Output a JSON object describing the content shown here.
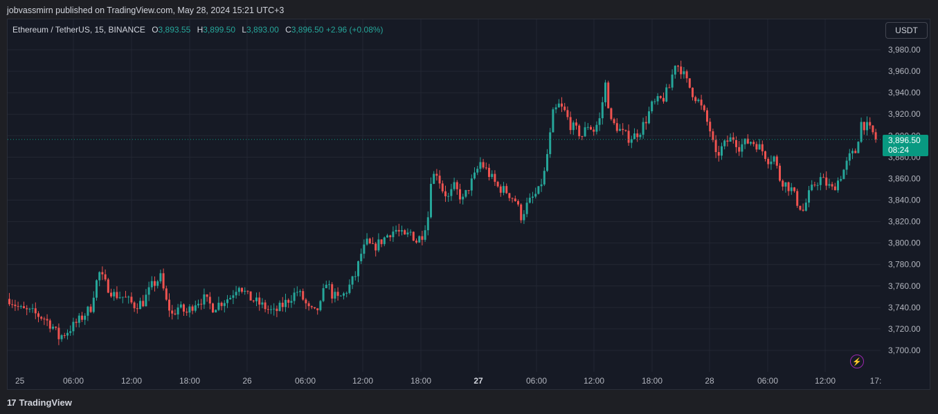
{
  "header": {
    "published_line": "jobvassmirn published on TradingView.com, May 28, 2024 15:21 UTC+3"
  },
  "legend": {
    "symbol": "Ethereum / TetherUS, 15, BINANCE",
    "o_label": "O",
    "o_value": "3,893.55",
    "h_label": "H",
    "h_value": "3,899.50",
    "l_label": "L",
    "l_value": "3,893.00",
    "c_label": "C",
    "c_value": "3,896.50",
    "change": "+2.96 (+0.08%)"
  },
  "currency_button": "USDT",
  "price_label": {
    "price": "3,896.50",
    "countdown": "08:24"
  },
  "footer": {
    "logo_mark": "17",
    "brand": "TradingView"
  },
  "colors": {
    "background": "#161a25",
    "up": "#26a69a",
    "down": "#ef5350",
    "grid": "#232733",
    "axis_text": "#b2b5be",
    "last_price": "#089981"
  },
  "icons": {
    "lightning": "lightning-icon"
  },
  "chart_data": {
    "type": "candlestick",
    "title": "Ethereum / TetherUS, 15, BINANCE",
    "interval": "15",
    "ylim": [
      3690,
      3990
    ],
    "y_ticks": [
      3700,
      3720,
      3740,
      3760,
      3780,
      3800,
      3820,
      3840,
      3860,
      3880,
      3900,
      3920,
      3940,
      3960,
      3980
    ],
    "y_tick_labels": [
      "3,700.00",
      "3,720.00",
      "3,740.00",
      "3,760.00",
      "3,780.00",
      "3,800.00",
      "3,820.00",
      "3,840.00",
      "3,860.00",
      "3,880.00",
      "3,900.00",
      "3,920.00",
      "3,940.00",
      "3,960.00",
      "3,980.00"
    ],
    "x_tick_labels": [
      "25",
      "06:00",
      "12:00",
      "18:00",
      "26",
      "06:00",
      "12:00",
      "18:00",
      "27",
      "06:00",
      "12:00",
      "18:00",
      "28",
      "06:00",
      "12:00",
      "17:"
    ],
    "x_tick_bold": [
      false,
      false,
      false,
      false,
      false,
      false,
      false,
      false,
      true,
      false,
      false,
      false,
      false,
      false,
      false,
      false
    ],
    "last_price": 3896.5,
    "grid": true,
    "price_path": [
      [
        0,
        3748
      ],
      [
        4,
        3738
      ],
      [
        8,
        3735
      ],
      [
        12,
        3730
      ],
      [
        15,
        3722
      ],
      [
        17,
        3712
      ],
      [
        20,
        3718
      ],
      [
        24,
        3728
      ],
      [
        28,
        3740
      ],
      [
        29.5,
        3760
      ],
      [
        31,
        3772
      ],
      [
        33,
        3762
      ],
      [
        36,
        3752
      ],
      [
        39,
        3750
      ],
      [
        43,
        3742
      ],
      [
        46,
        3745
      ],
      [
        49,
        3760
      ],
      [
        52,
        3768
      ],
      [
        54,
        3745
      ],
      [
        56,
        3733
      ],
      [
        58,
        3740
      ],
      [
        61,
        3735
      ],
      [
        64,
        3745
      ],
      [
        67,
        3748
      ],
      [
        70,
        3740
      ],
      [
        73,
        3745
      ],
      [
        76,
        3750
      ],
      [
        79,
        3762
      ],
      [
        82,
        3750
      ],
      [
        85,
        3745
      ],
      [
        88,
        3740
      ],
      [
        91,
        3735
      ],
      [
        94,
        3742
      ],
      [
        97,
        3750
      ],
      [
        99,
        3755
      ],
      [
        101,
        3748
      ],
      [
        103,
        3738
      ],
      [
        105,
        3735
      ],
      [
        107,
        3742
      ],
      [
        109,
        3765
      ],
      [
        111,
        3752
      ],
      [
        113,
        3748
      ],
      [
        115,
        3752
      ],
      [
        117,
        3760
      ],
      [
        119,
        3770
      ],
      [
        121,
        3790
      ],
      [
        123,
        3800
      ],
      [
        125,
        3795
      ],
      [
        128,
        3802
      ],
      [
        131,
        3810
      ],
      [
        133,
        3812
      ],
      [
        136,
        3805
      ],
      [
        138,
        3810
      ],
      [
        140,
        3802
      ],
      [
        142,
        3808
      ],
      [
        144,
        3825
      ],
      [
        145,
        3860
      ],
      [
        147,
        3866
      ],
      [
        149,
        3850
      ],
      [
        151,
        3842
      ],
      [
        153,
        3852
      ],
      [
        156,
        3840
      ],
      [
        158,
        3852
      ],
      [
        160,
        3862
      ],
      [
        162,
        3875
      ],
      [
        164,
        3868
      ],
      [
        166,
        3860
      ],
      [
        168,
        3852
      ],
      [
        171,
        3848
      ],
      [
        174,
        3840
      ],
      [
        176,
        3825
      ],
      [
        178,
        3835
      ],
      [
        180,
        3842
      ],
      [
        182,
        3848
      ],
      [
        184,
        3865
      ],
      [
        186,
        3900
      ],
      [
        187,
        3920
      ],
      [
        189,
        3928
      ],
      [
        191,
        3922
      ],
      [
        193,
        3910
      ],
      [
        195,
        3905
      ],
      [
        197,
        3900
      ],
      [
        199,
        3910
      ],
      [
        201,
        3905
      ],
      [
        203,
        3915
      ],
      [
        205,
        3948
      ],
      [
        207,
        3912
      ],
      [
        209,
        3908
      ],
      [
        211,
        3902
      ],
      [
        213,
        3898
      ],
      [
        215,
        3900
      ],
      [
        217,
        3905
      ],
      [
        219,
        3915
      ],
      [
        221,
        3928
      ],
      [
        223,
        3932
      ],
      [
        225,
        3935
      ],
      [
        227,
        3945
      ],
      [
        229,
        3968
      ],
      [
        231,
        3962
      ],
      [
        233,
        3950
      ],
      [
        235,
        3940
      ],
      [
        237,
        3932
      ],
      [
        239,
        3920
      ],
      [
        241,
        3905
      ],
      [
        243,
        3880
      ],
      [
        245,
        3888
      ],
      [
        247,
        3895
      ],
      [
        249,
        3898
      ],
      [
        251,
        3890
      ],
      [
        253,
        3893
      ],
      [
        255,
        3895
      ],
      [
        257,
        3892
      ],
      [
        259,
        3886
      ],
      [
        261,
        3878
      ],
      [
        263,
        3880
      ],
      [
        265,
        3860
      ],
      [
        267,
        3855
      ],
      [
        269,
        3850
      ],
      [
        271,
        3838
      ],
      [
        273,
        3830
      ],
      [
        275,
        3845
      ],
      [
        277,
        3855
      ],
      [
        279,
        3860
      ],
      [
        281,
        3855
      ],
      [
        283,
        3850
      ],
      [
        285,
        3858
      ],
      [
        287,
        3868
      ],
      [
        289,
        3880
      ],
      [
        291,
        3885
      ],
      [
        293,
        3912
      ],
      [
        295,
        3908
      ],
      [
        297,
        3902
      ],
      [
        298,
        3896.5
      ]
    ]
  }
}
